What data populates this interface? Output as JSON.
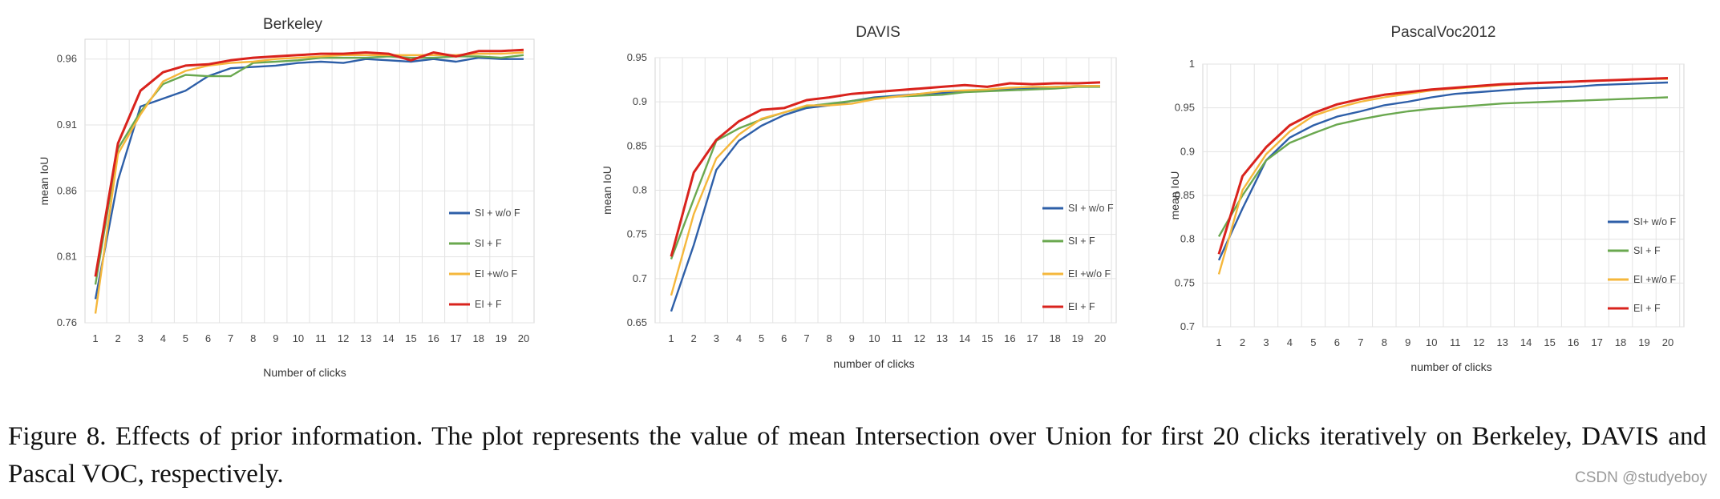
{
  "caption": {
    "text": "Figure 8. Effects of prior information.  The plot represents the value of mean Intersection over Union for first 20 clicks iteratively on Berkeley, DAVIS and Pascal VOC, respectively."
  },
  "watermark": "CSDN @studyeboy",
  "colors": {
    "blue": "#2e5fa8",
    "green": "#6aa84f",
    "orange": "#f5b73b",
    "red": "#d9231d",
    "grid": "#e3e3e3"
  },
  "chart_data": [
    {
      "type": "line",
      "title": "Berkeley",
      "xlabel": "Number of clicks",
      "ylabel": "mean IoU",
      "x": [
        1,
        2,
        3,
        4,
        5,
        6,
        7,
        8,
        9,
        10,
        11,
        12,
        13,
        14,
        15,
        16,
        17,
        18,
        19,
        20
      ],
      "ylim": [
        0.76,
        0.975
      ],
      "yticks": [
        0.76,
        0.81,
        0.86,
        0.91,
        0.96
      ],
      "ytick_labels": [
        "0.76",
        "0.81",
        "0.86",
        "0.91",
        "0.96"
      ],
      "grid": true,
      "legend_position": "right",
      "series": [
        {
          "name": "SI + w/o F",
          "color": "#2e5fa8",
          "values": [
            0.778,
            0.868,
            0.924,
            0.93,
            0.936,
            0.947,
            0.953,
            0.954,
            0.955,
            0.957,
            0.958,
            0.957,
            0.96,
            0.959,
            0.958,
            0.96,
            0.958,
            0.961,
            0.96,
            0.96
          ]
        },
        {
          "name": "SI + F",
          "color": "#6aa84f",
          "values": [
            0.789,
            0.892,
            0.92,
            0.941,
            0.948,
            0.947,
            0.947,
            0.957,
            0.958,
            0.959,
            0.961,
            0.961,
            0.961,
            0.962,
            0.961,
            0.961,
            0.962,
            0.962,
            0.961,
            0.963
          ]
        },
        {
          "name": "EI +w/o F",
          "color": "#f5b73b",
          "values": [
            0.767,
            0.888,
            0.918,
            0.943,
            0.951,
            0.955,
            0.957,
            0.958,
            0.96,
            0.961,
            0.962,
            0.963,
            0.963,
            0.963,
            0.963,
            0.963,
            0.963,
            0.964,
            0.964,
            0.965
          ]
        },
        {
          "name": "EI + F",
          "color": "#d9231d",
          "values": [
            0.795,
            0.896,
            0.936,
            0.95,
            0.955,
            0.956,
            0.959,
            0.961,
            0.962,
            0.963,
            0.964,
            0.964,
            0.965,
            0.964,
            0.959,
            0.965,
            0.962,
            0.966,
            0.966,
            0.967
          ]
        }
      ]
    },
    {
      "type": "line",
      "title": "DAVIS",
      "xlabel": "number of clicks",
      "ylabel": "mean IoU",
      "x": [
        1,
        2,
        3,
        4,
        5,
        6,
        7,
        8,
        9,
        10,
        11,
        12,
        13,
        14,
        15,
        16,
        17,
        18,
        19,
        20
      ],
      "ylim": [
        0.65,
        0.95
      ],
      "yticks": [
        0.65,
        0.7,
        0.75,
        0.8,
        0.85,
        0.9,
        0.95
      ],
      "ytick_labels": [
        "0.65",
        "0.7",
        "0.75",
        "0.8",
        "0.85",
        "0.9",
        "0.95"
      ],
      "grid": true,
      "legend_position": "right",
      "series": [
        {
          "name": "SI + w/o F",
          "color": "#2e5fa8",
          "values": [
            0.663,
            0.738,
            0.823,
            0.856,
            0.873,
            0.885,
            0.893,
            0.896,
            0.901,
            0.905,
            0.907,
            0.909,
            0.91,
            0.912,
            0.913,
            0.914,
            0.916,
            0.917,
            0.918,
            0.918
          ]
        },
        {
          "name": "SI + F",
          "color": "#6aa84f",
          "values": [
            0.722,
            0.79,
            0.856,
            0.87,
            0.88,
            0.888,
            0.895,
            0.898,
            0.901,
            0.904,
            0.906,
            0.907,
            0.908,
            0.911,
            0.912,
            0.913,
            0.914,
            0.915,
            0.917,
            0.917
          ]
        },
        {
          "name": "EI +w/o F",
          "color": "#f5b73b",
          "values": [
            0.681,
            0.773,
            0.836,
            0.863,
            0.881,
            0.888,
            0.896,
            0.896,
            0.898,
            0.903,
            0.906,
            0.909,
            0.912,
            0.913,
            0.914,
            0.916,
            0.917,
            0.917,
            0.918,
            0.918
          ]
        },
        {
          "name": "EI + F",
          "color": "#d9231d",
          "values": [
            0.725,
            0.82,
            0.857,
            0.878,
            0.891,
            0.893,
            0.902,
            0.905,
            0.909,
            0.911,
            0.913,
            0.915,
            0.917,
            0.919,
            0.917,
            0.921,
            0.92,
            0.921,
            0.921,
            0.922
          ]
        }
      ]
    },
    {
      "type": "line",
      "title": "PascalVoc2012",
      "xlabel": "number of clicks",
      "ylabel": "mean IoU",
      "x": [
        1,
        2,
        3,
        4,
        5,
        6,
        7,
        8,
        9,
        10,
        11,
        12,
        13,
        14,
        15,
        16,
        17,
        18,
        19,
        20
      ],
      "ylim": [
        0.7,
        1.0
      ],
      "yticks": [
        0.7,
        0.75,
        0.8,
        0.85,
        0.9,
        0.95,
        1.0
      ],
      "ytick_labels": [
        "0.7",
        "0.75",
        "0.8",
        "0.85",
        "0.9",
        "0.95",
        "1"
      ],
      "grid": true,
      "legend_position": "right",
      "series": [
        {
          "name": "SI+ w/o F",
          "color": "#2e5fa8",
          "values": [
            0.776,
            0.835,
            0.89,
            0.916,
            0.93,
            0.94,
            0.946,
            0.953,
            0.957,
            0.962,
            0.966,
            0.968,
            0.97,
            0.972,
            0.973,
            0.974,
            0.976,
            0.977,
            0.978,
            0.979
          ]
        },
        {
          "name": "SI + F",
          "color": "#6aa84f",
          "values": [
            0.803,
            0.85,
            0.89,
            0.91,
            0.921,
            0.931,
            0.937,
            0.942,
            0.946,
            0.949,
            0.951,
            0.953,
            0.955,
            0.956,
            0.957,
            0.958,
            0.959,
            0.96,
            0.961,
            0.962
          ]
        },
        {
          "name": "EI +w/o F",
          "color": "#f5b73b",
          "values": [
            0.76,
            0.856,
            0.897,
            0.923,
            0.941,
            0.95,
            0.957,
            0.962,
            0.966,
            0.97,
            0.972,
            0.974,
            0.976,
            0.978,
            0.979,
            0.98,
            0.981,
            0.982,
            0.983,
            0.983
          ]
        },
        {
          "name": "EI + F",
          "color": "#d9231d",
          "values": [
            0.783,
            0.872,
            0.905,
            0.93,
            0.944,
            0.954,
            0.96,
            0.965,
            0.968,
            0.971,
            0.973,
            0.975,
            0.977,
            0.978,
            0.979,
            0.98,
            0.981,
            0.982,
            0.983,
            0.984
          ]
        }
      ]
    }
  ]
}
